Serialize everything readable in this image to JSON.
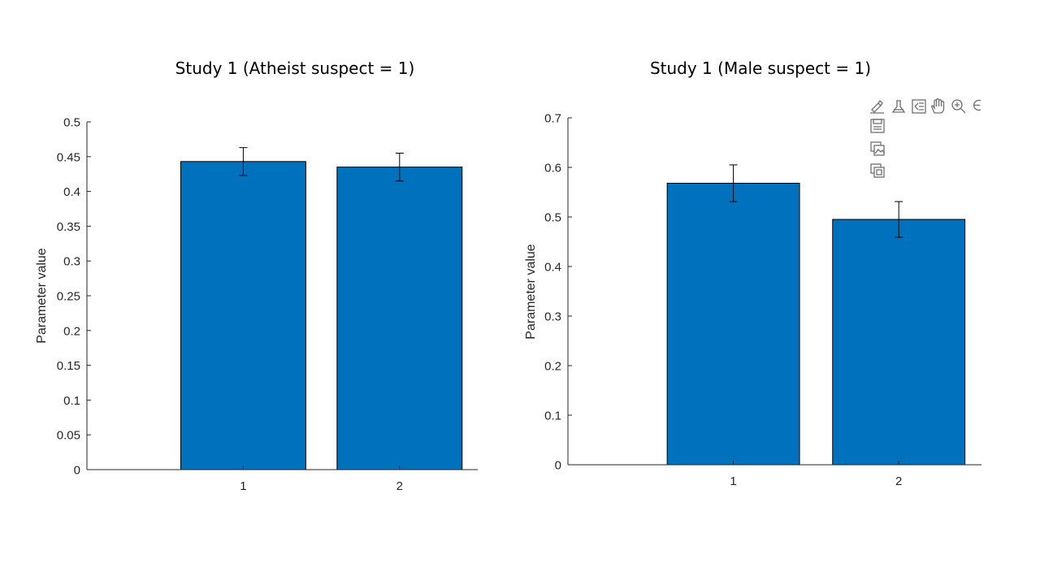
{
  "chart_data": [
    {
      "type": "bar",
      "title": "Study 1 (Atheist suspect = 1)",
      "ylabel": "Parameter value",
      "xlabel": "",
      "categories": [
        "1",
        "2"
      ],
      "values": [
        0.443,
        0.435
      ],
      "errors": [
        0.02,
        0.02
      ],
      "xlim": [
        0,
        2.5
      ],
      "ylim": [
        0,
        0.5
      ],
      "yticks": [
        "0",
        "0.05",
        "0.1",
        "0.15",
        "0.2",
        "0.25",
        "0.3",
        "0.35",
        "0.4",
        "0.45",
        "0.5"
      ],
      "bar_color": "#0072BD",
      "grid": false
    },
    {
      "type": "bar",
      "title": "Study 1 (Male suspect = 1)",
      "ylabel": "Parameter value",
      "xlabel": "",
      "categories": [
        "1",
        "2"
      ],
      "values": [
        0.568,
        0.495
      ],
      "errors": [
        0.037,
        0.036
      ],
      "xlim": [
        0,
        2.5
      ],
      "ylim": [
        0,
        0.7
      ],
      "yticks": [
        "0",
        "0.1",
        "0.2",
        "0.3",
        "0.4",
        "0.5",
        "0.6",
        "0.7"
      ],
      "bar_color": "#0072BD",
      "grid": false
    }
  ],
  "axes_toolbar": {
    "icons": [
      "brush-icon",
      "data-tips-icon",
      "legend-icon",
      "pan-icon",
      "zoom-in-icon",
      "zoom-out-icon",
      "save-icon",
      "copy-image-icon",
      "copy-vector-icon"
    ]
  }
}
